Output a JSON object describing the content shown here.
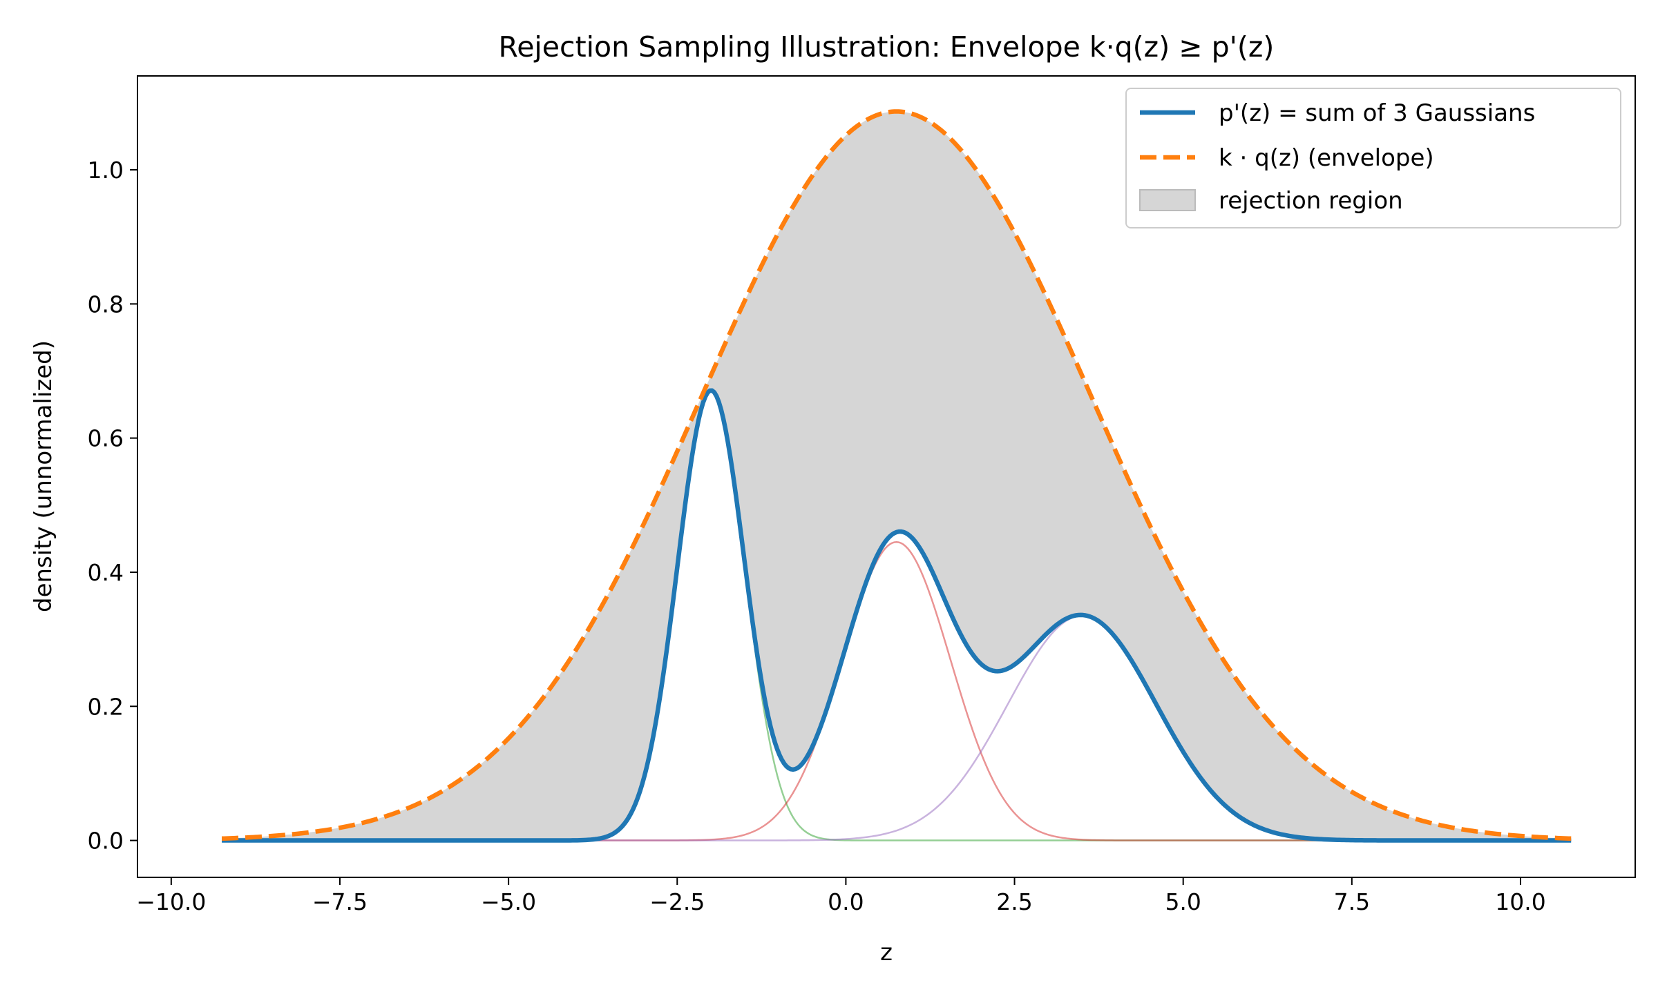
{
  "chart_data": {
    "type": "line",
    "title": "Rejection Sampling Illustration: Envelope k·q(z) ≥ p'(z)",
    "xlabel": "z",
    "ylabel": "density (unnormalized)",
    "xlim": [
      -10.5,
      11.7
    ],
    "ylim": [
      -0.055,
      1.14
    ],
    "x_range": [
      -9.25,
      10.75
    ],
    "xticks": [
      -10.0,
      -7.5,
      -5.0,
      -2.5,
      0.0,
      2.5,
      5.0,
      7.5,
      10.0
    ],
    "xtick_labels": [
      "−10.0",
      "−7.5",
      "−5.0",
      "−2.5",
      "0.0",
      "2.5",
      "5.0",
      "7.5",
      "10.0"
    ],
    "yticks": [
      0.0,
      0.2,
      0.4,
      0.6,
      0.8,
      1.0
    ],
    "ytick_labels": [
      "0.0",
      "0.2",
      "0.4",
      "0.6",
      "0.8",
      "1.0"
    ],
    "grid": false,
    "legend_position": "upper-right",
    "components": [
      {
        "mu": -2.0,
        "sigma": 0.5,
        "amp": 0.67,
        "color": "#2ca02c"
      },
      {
        "mu": 0.75,
        "sigma": 0.8,
        "amp": 0.445,
        "color": "#d62728"
      },
      {
        "mu": 3.5,
        "sigma": 1.1,
        "amp": 0.335,
        "color": "#9467bd"
      }
    ],
    "envelope": {
      "mu": 0.75,
      "sigma": 2.9,
      "amp": 1.087
    },
    "series": [
      {
        "name": "p'(z) = sum of 3 Gaussians",
        "color": "#1f77b4",
        "style": "solid"
      },
      {
        "name": "k · q(z) (envelope)",
        "color": "#ff7f0e",
        "style": "dashed"
      },
      {
        "name": "rejection region",
        "color": "#d6d6d6",
        "style": "fill"
      }
    ]
  }
}
